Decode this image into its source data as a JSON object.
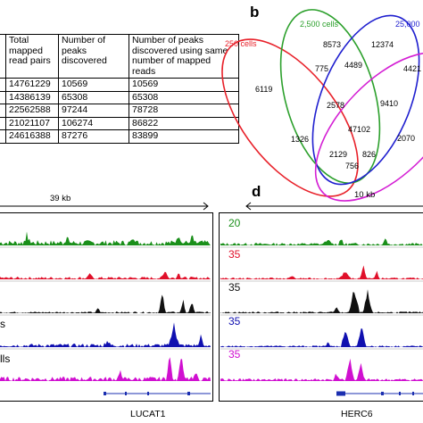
{
  "panel_a": {
    "headers": [
      "Total mapped read pairs",
      "Number of peaks discovered",
      "Number of peaks discovered using same number of mapped reads"
    ],
    "rows": [
      [
        "14761229",
        "10569",
        "10569"
      ],
      [
        "14386139",
        "65308",
        "65308"
      ],
      [
        "22562588",
        "97244",
        "78728"
      ],
      [
        "21021107",
        "106274",
        "86822"
      ],
      [
        "24616388",
        "87276",
        "83899"
      ]
    ]
  },
  "panel_b": {
    "letter": "b",
    "sets": [
      {
        "label": "250 cells",
        "color": "#e8212a"
      },
      {
        "label": "2,500 cells",
        "color": "#2ca02c"
      },
      {
        "label": "25,000",
        "color": "#1f1fcf"
      },
      {
        "label": "",
        "color": "#d41fd4"
      }
    ],
    "regions": [
      "8573",
      "12374",
      "775",
      "4489",
      "4421",
      "6119",
      "2578",
      "9410",
      "47102",
      "1326",
      "2070",
      "2129",
      "826",
      "756"
    ]
  },
  "panel_c": {
    "scale": "39 kb",
    "gene": "LUCAT1",
    "track_labels": [
      "s",
      "lls"
    ]
  },
  "panel_d": {
    "letter": "d",
    "scale": "10 kb",
    "gene": "HERC6",
    "track_values": [
      "20",
      "35",
      "35",
      "35",
      "35"
    ]
  },
  "colors": {
    "green": "#1a8f1a",
    "red": "#e0102a",
    "black": "#111111",
    "blue": "#1010b0",
    "magenta": "#d010d0"
  }
}
